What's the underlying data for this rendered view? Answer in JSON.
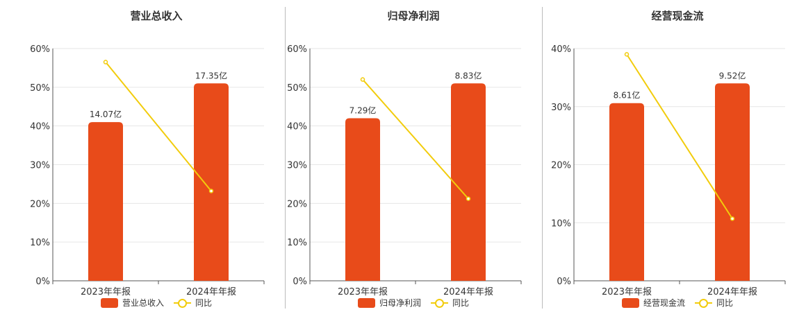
{
  "chart_data": [
    {
      "type": "bar",
      "title": "营业总收入",
      "categories": [
        "2023年年报",
        "2024年年报"
      ],
      "series": [
        {
          "name": "营业总收入",
          "type": "bar",
          "values": [
            41,
            51
          ],
          "labels": [
            "14.07亿",
            "17.35亿"
          ],
          "color": "#E84B1A"
        },
        {
          "name": "同比",
          "type": "line",
          "values": [
            56.5,
            23.2
          ],
          "color": "#F2CC0C"
        }
      ],
      "ylim": [
        0,
        60
      ],
      "yticks": [
        "0%",
        "10%",
        "20%",
        "30%",
        "40%",
        "50%",
        "60%"
      ],
      "ytick_values": [
        0,
        10,
        20,
        30,
        40,
        50,
        60
      ],
      "grid": true,
      "legend": "bottom"
    },
    {
      "type": "bar",
      "title": "归母净利润",
      "categories": [
        "2023年年报",
        "2024年年报"
      ],
      "series": [
        {
          "name": "归母净利润",
          "type": "bar",
          "values": [
            42,
            51
          ],
          "labels": [
            "7.29亿",
            "8.83亿"
          ],
          "color": "#E84B1A"
        },
        {
          "name": "同比",
          "type": "line",
          "values": [
            52,
            21.2
          ],
          "color": "#F2CC0C"
        }
      ],
      "ylim": [
        0,
        60
      ],
      "yticks": [
        "0%",
        "10%",
        "20%",
        "30%",
        "40%",
        "50%",
        "60%"
      ],
      "ytick_values": [
        0,
        10,
        20,
        30,
        40,
        50,
        60
      ],
      "grid": true,
      "legend": "bottom"
    },
    {
      "type": "bar",
      "title": "经营现金流",
      "categories": [
        "2023年年报",
        "2024年年报"
      ],
      "series": [
        {
          "name": "经营现金流",
          "type": "bar",
          "values": [
            30.6,
            34
          ],
          "labels": [
            "8.61亿",
            "9.52亿"
          ],
          "color": "#E84B1A"
        },
        {
          "name": "同比",
          "type": "line",
          "values": [
            39,
            10.7
          ],
          "color": "#F2CC0C"
        }
      ],
      "ylim": [
        0,
        40
      ],
      "yticks": [
        "0%",
        "10%",
        "20%",
        "30%",
        "40%"
      ],
      "ytick_values": [
        0,
        10,
        20,
        30,
        40
      ],
      "grid": true,
      "legend": "bottom"
    }
  ]
}
